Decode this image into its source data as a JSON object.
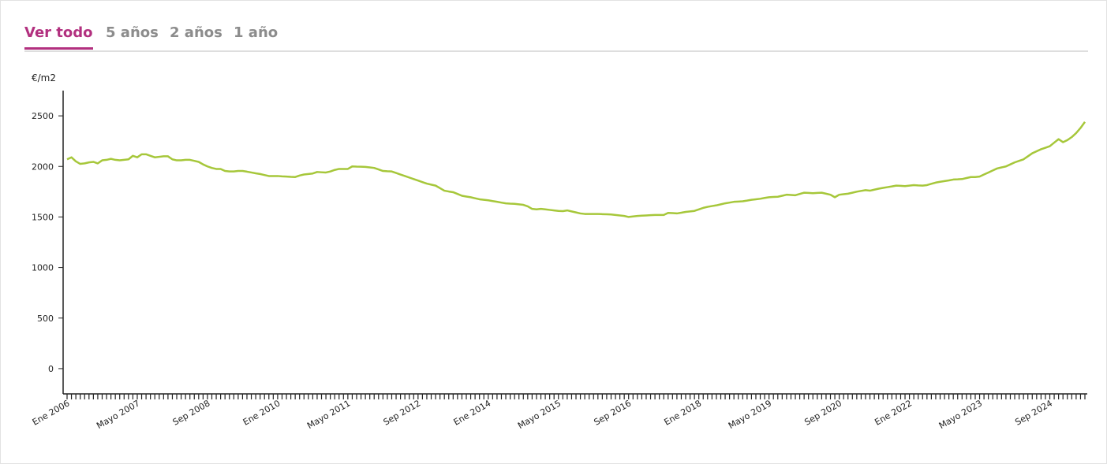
{
  "tabs": [
    "Ver todo",
    "5 años",
    "2 años",
    "1 año"
  ],
  "active_tab": 0,
  "chart_data": {
    "type": "line",
    "y_label": "€/m2",
    "ylim": [
      -250,
      2750
    ],
    "yticks": [
      0,
      500,
      1000,
      1500,
      2000,
      2500
    ],
    "categories": [
      "Ene 2006",
      null,
      null,
      null,
      null,
      null,
      null,
      null,
      null,
      null,
      null,
      null,
      null,
      null,
      null,
      null,
      "Mayo 2007",
      null,
      null,
      null,
      null,
      null,
      null,
      null,
      null,
      null,
      null,
      null,
      null,
      null,
      null,
      null,
      "Sep 2008",
      null,
      null,
      null,
      null,
      null,
      null,
      null,
      null,
      null,
      null,
      null,
      null,
      null,
      null,
      null,
      "Ene 2010",
      null,
      null,
      null,
      null,
      null,
      null,
      null,
      null,
      null,
      null,
      null,
      null,
      null,
      null,
      null,
      "Mayo 2011",
      null,
      null,
      null,
      null,
      null,
      null,
      null,
      null,
      null,
      null,
      null,
      null,
      null,
      null,
      null,
      "Sep 2012",
      null,
      null,
      null,
      null,
      null,
      null,
      null,
      null,
      null,
      null,
      null,
      null,
      null,
      null,
      null,
      "Ene 2014",
      null,
      null,
      null,
      null,
      null,
      null,
      null,
      null,
      null,
      null,
      null,
      null,
      null,
      null,
      null,
      "Mayo 2015",
      null,
      null,
      null,
      null,
      null,
      null,
      null,
      null,
      null,
      null,
      null,
      null,
      null,
      null,
      null,
      "Sep 2016",
      null,
      null,
      null,
      null,
      null,
      null,
      null,
      null,
      null,
      null,
      null,
      null,
      null,
      null,
      null,
      "Ene 2018",
      null,
      null,
      null,
      null,
      null,
      null,
      null,
      null,
      null,
      null,
      null,
      null,
      null,
      null,
      null,
      "Mayo 2019",
      null,
      null,
      null,
      null,
      null,
      null,
      null,
      null,
      null,
      null,
      null,
      null,
      null,
      null,
      null,
      "Sep 2020",
      null,
      null,
      null,
      null,
      null,
      null,
      null,
      null,
      null,
      null,
      null,
      null,
      null,
      null,
      null,
      "Ene 2022",
      null,
      null,
      null,
      null,
      null,
      null,
      null,
      null,
      null,
      null,
      null,
      null,
      null,
      null,
      null,
      "Mayo 2023",
      null,
      null,
      null,
      null,
      null,
      null,
      null,
      null,
      null,
      null,
      null,
      null,
      null,
      null,
      null,
      "Sep 2024",
      null,
      null,
      null,
      null,
      null,
      null,
      null,
      null
    ],
    "series": [
      {
        "color": "#a6c73a",
        "values": [
          2070,
          2090,
          2050,
          2025,
          2030,
          2040,
          2045,
          2030,
          2060,
          2065,
          2075,
          2065,
          2060,
          2065,
          2070,
          2105,
          2090,
          2120,
          2120,
          2105,
          2090,
          2095,
          2100,
          2100,
          2070,
          2060,
          2060,
          2065,
          2065,
          2055,
          2045,
          2020,
          2000,
          1985,
          1975,
          1975,
          1955,
          1950,
          1950,
          1955,
          1955,
          1948,
          1940,
          1932,
          1925,
          1915,
          1905,
          1905,
          1905,
          1902,
          1900,
          1897,
          1895,
          1910,
          1920,
          1925,
          1930,
          1945,
          1942,
          1940,
          1950,
          1965,
          1975,
          1975,
          1975,
          2000,
          1998,
          1997,
          1995,
          1990,
          1985,
          1970,
          1955,
          1952,
          1950,
          1935,
          1920,
          1905,
          1890,
          1875,
          1860,
          1845,
          1830,
          1820,
          1810,
          1785,
          1760,
          1752,
          1745,
          1728,
          1710,
          1702,
          1695,
          1685,
          1675,
          1670,
          1665,
          1657,
          1650,
          1642,
          1635,
          1632,
          1630,
          1625,
          1620,
          1605,
          1580,
          1575,
          1580,
          1575,
          1570,
          1565,
          1560,
          1558,
          1565,
          1555,
          1545,
          1535,
          1530,
          1530,
          1530,
          1530,
          1528,
          1527,
          1525,
          1520,
          1515,
          1510,
          1500,
          1505,
          1510,
          1513,
          1515,
          1518,
          1520,
          1520,
          1520,
          1540,
          1538,
          1535,
          1542,
          1550,
          1555,
          1560,
          1575,
          1590,
          1600,
          1608,
          1615,
          1625,
          1635,
          1642,
          1650,
          1652,
          1655,
          1662,
          1670,
          1675,
          1680,
          1688,
          1695,
          1698,
          1700,
          1710,
          1720,
          1718,
          1715,
          1728,
          1740,
          1738,
          1735,
          1738,
          1740,
          1730,
          1720,
          1695,
          1720,
          1725,
          1730,
          1740,
          1750,
          1758,
          1765,
          1760,
          1770,
          1780,
          1788,
          1795,
          1802,
          1810,
          1808,
          1805,
          1810,
          1815,
          1812,
          1810,
          1815,
          1828,
          1840,
          1848,
          1855,
          1862,
          1870,
          1872,
          1875,
          1885,
          1895,
          1895,
          1900,
          1920,
          1940,
          1960,
          1980,
          1990,
          2000,
          2020,
          2040,
          2055,
          2070,
          2100,
          2130,
          2150,
          2170,
          2185,
          2200,
          2235,
          2270,
          2240,
          2260,
          2290,
          2330,
          2380,
          2440
        ]
      }
    ]
  }
}
